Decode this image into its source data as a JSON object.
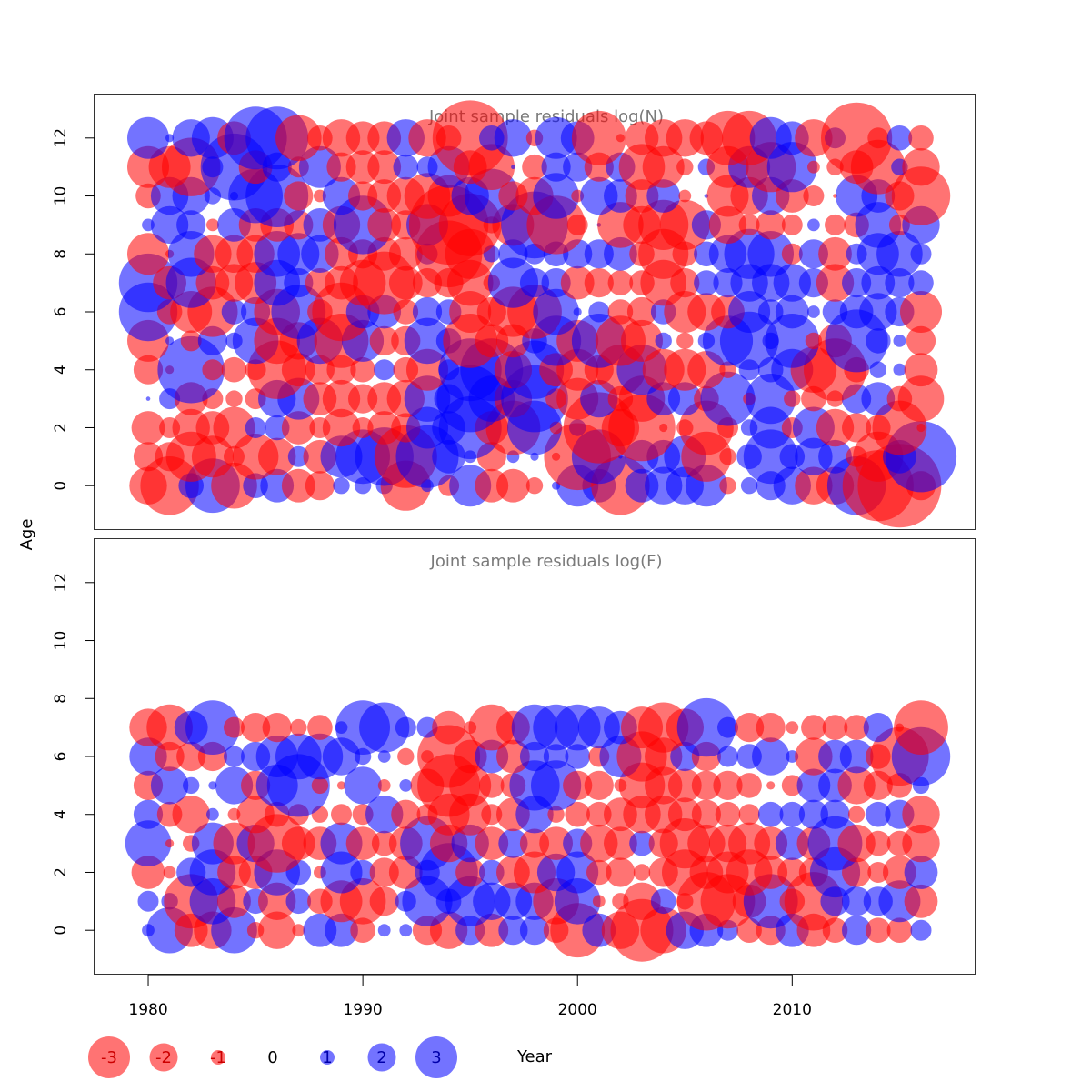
{
  "chart_data": {
    "type": "scatter",
    "subtype": "bubble",
    "xlabel": "Year",
    "ylabel": "Age",
    "xlim": [
      1977.5,
      2018.5
    ],
    "x_ticks": [
      1980,
      1990,
      2000,
      2010
    ],
    "y_ticks": [
      0,
      2,
      4,
      6,
      8,
      10,
      12
    ],
    "colors": {
      "positive": "#0000ff",
      "negative": "#ff0000",
      "opacity": 0.55
    },
    "legend": {
      "position": "bottom",
      "entries": [
        {
          "label": "-3",
          "value": -3
        },
        {
          "label": "-2",
          "value": -2
        },
        {
          "label": "-1",
          "value": -1
        },
        {
          "label": "0",
          "value": 0
        },
        {
          "label": "1",
          "value": 1
        },
        {
          "label": "2",
          "value": 2
        },
        {
          "label": "3",
          "value": 3
        }
      ]
    },
    "panels": [
      {
        "title": "Joint sample residuals log(N)",
        "ylim": [
          -1.5,
          13.5
        ],
        "years": [
          1980,
          1981,
          1982,
          1983,
          1984,
          1985,
          1986,
          1987,
          1988,
          1989,
          1990,
          1991,
          1992,
          1993,
          1994,
          1995,
          1996,
          1997,
          1998,
          1999,
          2000,
          2001,
          2002,
          2003,
          2004,
          2005,
          2006,
          2007,
          2008,
          2009,
          2010,
          2011,
          2012,
          2013,
          2014,
          2015,
          2016
        ],
        "ages": [
          0,
          1,
          2,
          3,
          4,
          5,
          6,
          7,
          8,
          9,
          10,
          11,
          12
        ],
        "residuals": [
          [
            -0.9,
            -1.4,
            0.6,
            1.3,
            -1.1,
            0.6,
            0.8,
            -0.8,
            -0.7,
            0.4,
            0.4,
            0.4,
            -1.2,
            0.3,
            -0.5,
            1.0,
            -0.8,
            -0.8,
            -0.4,
            0.2,
            1.0,
            0.8,
            -1.4,
            0.8,
            0.9,
            0.9,
            1.0,
            -0.4,
            0.4,
            0.7,
            0.9,
            -0.9,
            -0.9,
            1.4,
            -1.7,
            -2.0,
            -0.7
          ],
          [
            -0.7,
            -0.7,
            -1.2,
            -1.0,
            -0.5,
            -1.1,
            -0.9,
            0.5,
            -0.8,
            1.0,
            1.3,
            1.4,
            -1.5,
            1.5,
            0.8,
            0.3,
            -0.7,
            0.3,
            0.2,
            -0.2,
            -1.6,
            1.3,
            0.1,
            0.8,
            0.8,
            1.0,
            -1.2,
            -0.4,
            0.6,
            1.3,
            0.6,
            0.9,
            0.8,
            -0.5,
            -1.2,
            0.8,
            1.7
          ],
          [
            -0.8,
            -0.5,
            -0.9,
            -0.8,
            -1.0,
            0.5,
            0.6,
            -0.8,
            -0.5,
            -0.9,
            -0.5,
            -0.8,
            -0.7,
            1.0,
            0.8,
            1.5,
            -0.8,
            -1.3,
            1.3,
            -0.3,
            0.4,
            -1.7,
            -0.9,
            -1.6,
            -0.2,
            -0.4,
            -1.3,
            -0.5,
            0.4,
            1.0,
            -0.5,
            1.0,
            -0.9,
            -0.7,
            -0.6,
            -1.3,
            -0.2
          ],
          [
            0.1,
            0.5,
            -0.8,
            -0.5,
            -0.4,
            -0.5,
            0.9,
            1.0,
            -0.8,
            -0.9,
            -0.7,
            -0.8,
            -0.9,
            1.1,
            0.7,
            1.6,
            1.1,
            -0.9,
            1.6,
            -0.5,
            -1.0,
            0.9,
            -0.6,
            -1.1,
            0.8,
            0.8,
            -0.6,
            1.3,
            -0.3,
            1.2,
            -0.4,
            -0.6,
            -0.4,
            0.7,
            0.8,
            -0.6,
            -1.1
          ],
          [
            -0.7,
            -0.2,
            1.6,
            -0.5,
            -0.6,
            -0.5,
            -1.4,
            -0.8,
            -0.7,
            -0.7,
            -0.6,
            0.5,
            -0.6,
            -1.0,
            0.5,
            1.5,
            1.5,
            -0.9,
            1.4,
            -0.8,
            -1.0,
            -0.7,
            -1.2,
            1.2,
            -1.0,
            -1.0,
            -0.9,
            -0.4,
            0.5,
            0.6,
            1.0,
            -1.1,
            -1.5,
            -0.6,
            0.4,
            0.3,
            -0.8
          ],
          [
            -1.0,
            0.2,
            -0.5,
            0.7,
            0.4,
            1.1,
            -1.1,
            -0.9,
            1.1,
            -1.3,
            1.0,
            -0.7,
            -0.7,
            1.1,
            0.6,
            -1.3,
            -0.8,
            -0.8,
            0.6,
            1.2,
            -1.0,
            1.3,
            -1.2,
            -1.0,
            0.4,
            -0.4,
            0.4,
            1.2,
            1.4,
            0.4,
            1.3,
            -0.4,
            -0.8,
            1.5,
            0.6,
            0.3,
            -0.7
          ],
          [
            1.4,
            -0.6,
            -1.0,
            -1.2,
            0.6,
            0.7,
            -1.1,
            1.3,
            -0.6,
            -1.4,
            0.8,
            0.8,
            -0.6,
            0.7,
            0.6,
            -1.0,
            -0.7,
            -1.2,
            -1.3,
            1.1,
            0.2,
            0.5,
            -0.6,
            -0.7,
            0.6,
            -1.0,
            -0.9,
            -0.8,
            1.0,
            0.6,
            0.8,
            0.3,
            0.6,
            0.8,
            0.9,
            0.7,
            -1.0
          ],
          [
            1.4,
            -0.8,
            1.2,
            -0.8,
            -0.9,
            -1.0,
            1.1,
            0.7,
            -0.7,
            -0.8,
            -1.1,
            -1.5,
            -0.8,
            -0.7,
            -0.7,
            -1.1,
            -0.4,
            1.2,
            0.7,
            0.7,
            -0.8,
            -0.7,
            -0.6,
            -0.6,
            -1.1,
            -0.7,
            0.6,
            0.7,
            0.9,
            0.9,
            0.9,
            0.7,
            -0.9,
            0.7,
            0.8,
            0.7,
            0.6
          ],
          [
            -1.0,
            -0.2,
            1.1,
            -0.9,
            -0.9,
            -0.9,
            1.1,
            1.0,
            0.9,
            -0.8,
            -0.7,
            -0.8,
            -0.8,
            0.5,
            -1.6,
            -1.2,
            0.4,
            0.7,
            0.5,
            0.6,
            0.7,
            0.7,
            0.8,
            -0.6,
            -1.2,
            -0.6,
            0.6,
            0.9,
            1.2,
            1.1,
            -0.5,
            0.7,
            -0.8,
            0.5,
            1.0,
            1.1,
            0.5
          ],
          [
            0.3,
            0.9,
            0.7,
            -0.3,
            0.8,
            -0.8,
            -0.8,
            -0.7,
            0.8,
            -0.9,
            1.4,
            -0.8,
            -0.7,
            1.0,
            -1.9,
            -1.5,
            -0.4,
            -1.0,
            1.6,
            -1.4,
            -0.5,
            0.1,
            -1.1,
            -0.9,
            -1.2,
            -1.2,
            0.7,
            -0.9,
            -0.5,
            -0.7,
            -0.5,
            0.3,
            -0.5,
            -0.6,
            1.1,
            -0.5,
            0.9
          ],
          [
            -0.6,
            0.9,
            0.9,
            0.4,
            0.2,
            1.3,
            1.5,
            -0.7,
            -0.3,
            0.9,
            -0.7,
            -0.8,
            -0.9,
            -1.1,
            -1.0,
            0.9,
            1.3,
            -0.7,
            -0.9,
            1.1,
            -0.3,
            0.9,
            0.8,
            -0.8,
            0.8,
            -0.3,
            0.1,
            -1.0,
            -0.9,
            0.9,
            -0.8,
            -0.5,
            -0.1,
            1.0,
            0.8,
            -0.7,
            -1.4
          ],
          [
            -1.0,
            -1.0,
            -1.4,
            0.5,
            1.6,
            -0.8,
            0.7,
            -0.5,
            1.0,
            -0.7,
            -0.8,
            -0.8,
            0.6,
            0.5,
            1.0,
            -0.8,
            -1.1,
            0.1,
            -0.6,
            0.7,
            0.7,
            -0.7,
            0.7,
            -1.1,
            -1.0,
            -0.4,
            0.4,
            -1.0,
            1.0,
            -1.2,
            1.2,
            -0.3,
            -0.4,
            -0.8,
            -1.3,
            0.4,
            -0.9
          ],
          [
            1.0,
            0.2,
            0.9,
            1.0,
            -0.8,
            1.5,
            1.5,
            -1.1,
            -0.6,
            -0.9,
            -0.8,
            -0.8,
            0.9,
            -0.9,
            -0.6,
            -1.8,
            0.6,
            0.9,
            -0.4,
            1.0,
            0.8,
            -1.3,
            -0.2,
            -0.8,
            -0.9,
            -0.9,
            -0.8,
            -1.3,
            -1.3,
            1.0,
            0.8,
            -0.9,
            0.5,
            -1.7,
            -0.5,
            0.6,
            -0.6
          ]
        ]
      },
      {
        "title": "Joint sample residuals log(F)",
        "ylim": [
          -1.5,
          13.5
        ],
        "years": [
          1980,
          1981,
          1982,
          1983,
          1984,
          1985,
          1986,
          1987,
          1988,
          1989,
          1990,
          1991,
          1992,
          1993,
          1994,
          1995,
          1996,
          1997,
          1998,
          1999,
          2000,
          2001,
          2002,
          2003,
          2004,
          2005,
          2006,
          2007,
          2008,
          2009,
          2010,
          2011,
          2012,
          2013,
          2014,
          2015,
          2016
        ],
        "ages": [
          0,
          1,
          2,
          3,
          4,
          5,
          6,
          7
        ],
        "residuals": [
          [
            0.3,
            1.1,
            -0.8,
            -0.9,
            1.1,
            -0.4,
            -0.9,
            -0.3,
            0.8,
            0.8,
            -0.6,
            0.3,
            0.3,
            -0.7,
            -0.9,
            0.7,
            -0.8,
            0.7,
            0.7,
            -0.6,
            -1.3,
            0.8,
            -0.9,
            -1.5,
            -1.1,
            0.9,
            0.8,
            0.5,
            -0.6,
            -0.7,
            0.8,
            -0.8,
            -0.6,
            0.7,
            -0.6,
            -0.6,
            0.5
          ],
          [
            0.5,
            0.4,
            -1.3,
            1.1,
            -0.8,
            0.6,
            -0.9,
            0.6,
            -0.6,
            -1.0,
            -1.1,
            -0.7,
            0.5,
            1.2,
            0.6,
            1.2,
            0.9,
            0.9,
            0.9,
            -1.1,
            1.1,
            -0.3,
            -0.4,
            -0.9,
            0.6,
            -0.4,
            -1.4,
            -1.3,
            -0.8,
            1.3,
            -0.6,
            -1.4,
            0.7,
            0.7,
            0.7,
            1.0,
            -0.8
          ],
          [
            -0.8,
            -0.3,
            0.7,
            1.1,
            -0.8,
            -0.8,
            1.1,
            0.6,
            -0.3,
            1.0,
            0.6,
            -0.7,
            -0.8,
            0.6,
            1.4,
            -0.7,
            0.6,
            -0.8,
            -1.0,
            0.9,
            1.0,
            -0.6,
            -0.7,
            -0.4,
            -0.7,
            -1.1,
            -0.8,
            -1.0,
            -1.1,
            -0.8,
            -0.7,
            -0.7,
            1.2,
            -0.7,
            -0.5,
            -0.8,
            0.8
          ],
          [
            1.1,
            -0.2,
            -0.4,
            1.0,
            -1.0,
            0.9,
            -1.4,
            -0.8,
            -0.8,
            1.0,
            -0.8,
            -0.6,
            -0.8,
            1.3,
            -0.9,
            0.9,
            -0.8,
            0.7,
            -0.7,
            -0.8,
            0.7,
            -0.9,
            -0.8,
            0.6,
            -0.7,
            -1.2,
            -0.9,
            -0.9,
            -1.0,
            -0.8,
            0.8,
            -0.8,
            1.3,
            -0.9,
            -0.6,
            -0.6,
            -0.9
          ],
          [
            0.7,
            -0.6,
            -0.9,
            0.3,
            -0.3,
            -0.9,
            -0.6,
            -0.5,
            -0.4,
            -0.5,
            -0.5,
            0.9,
            -0.7,
            -0.5,
            -1.0,
            -1.0,
            -0.5,
            -0.8,
            0.9,
            -0.4,
            -0.6,
            -0.6,
            -0.8,
            -0.9,
            -0.9,
            -0.8,
            -0.7,
            -0.6,
            -0.5,
            0.6,
            0.6,
            0.7,
            0.7,
            -0.4,
            0.6,
            0.7,
            -0.9
          ],
          [
            -0.7,
            0.9,
            0.4,
            0.2,
            0.9,
            -0.7,
            1.0,
            1.5,
            -0.4,
            -0.2,
            0.9,
            -0.3,
            0.3,
            -0.8,
            -1.5,
            -1.0,
            -0.6,
            -0.6,
            1.2,
            1.2,
            -0.7,
            -0.7,
            -0.3,
            -1.1,
            -0.9,
            -0.8,
            -0.7,
            -0.7,
            -0.6,
            -0.2,
            -0.5,
            0.8,
            0.8,
            -0.9,
            -0.7,
            -0.6,
            0.4
          ],
          [
            0.9,
            -0.7,
            -0.7,
            -0.7,
            0.5,
            0.7,
            1.0,
            1.1,
            1.1,
            0.9,
            0.4,
            0.3,
            -0.4,
            -0.3,
            -1.5,
            -0.8,
            0.8,
            -0.8,
            0.7,
            0.6,
            0.6,
            -0.5,
            1.0,
            -1.2,
            -0.9,
            0.7,
            -0.7,
            0.5,
            0.6,
            0.9,
            0.3,
            -0.9,
            0.8,
            0.8,
            -0.6,
            -1.4,
            1.4
          ],
          [
            -0.9,
            -1.1,
            0.8,
            1.3,
            -0.5,
            -0.7,
            -0.7,
            -0.4,
            -0.6,
            0.3,
            1.3,
            1.2,
            0.5,
            0.5,
            -0.8,
            -0.3,
            -1.1,
            -0.8,
            1.1,
            1.1,
            1.1,
            1.0,
            0.8,
            -1.0,
            -1.2,
            -0.9,
            1.4,
            0.5,
            -0.7,
            -0.7,
            -0.3,
            -0.6,
            -0.6,
            -0.6,
            0.7,
            -0.2,
            -1.3
          ]
        ]
      }
    ]
  }
}
